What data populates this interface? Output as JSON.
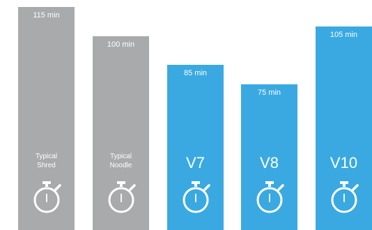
{
  "chart_data": {
    "type": "bar",
    "categories": [
      "Typical Shred",
      "Typical Noodle",
      "V7",
      "V8",
      "V10"
    ],
    "values": [
      115,
      100,
      85,
      75,
      105
    ],
    "value_labels": [
      "115 min",
      "100 min",
      "85 min",
      "75 min",
      "105 min"
    ],
    "bar_colors": [
      "#a9aaac",
      "#a9aaac",
      "#3aa9e1",
      "#3aa9e1",
      "#3aa9e1"
    ],
    "ylim": [
      0,
      115
    ],
    "grid": false,
    "icon": "stopwatch-icon",
    "title": "",
    "xlabel": "",
    "ylabel": ""
  }
}
